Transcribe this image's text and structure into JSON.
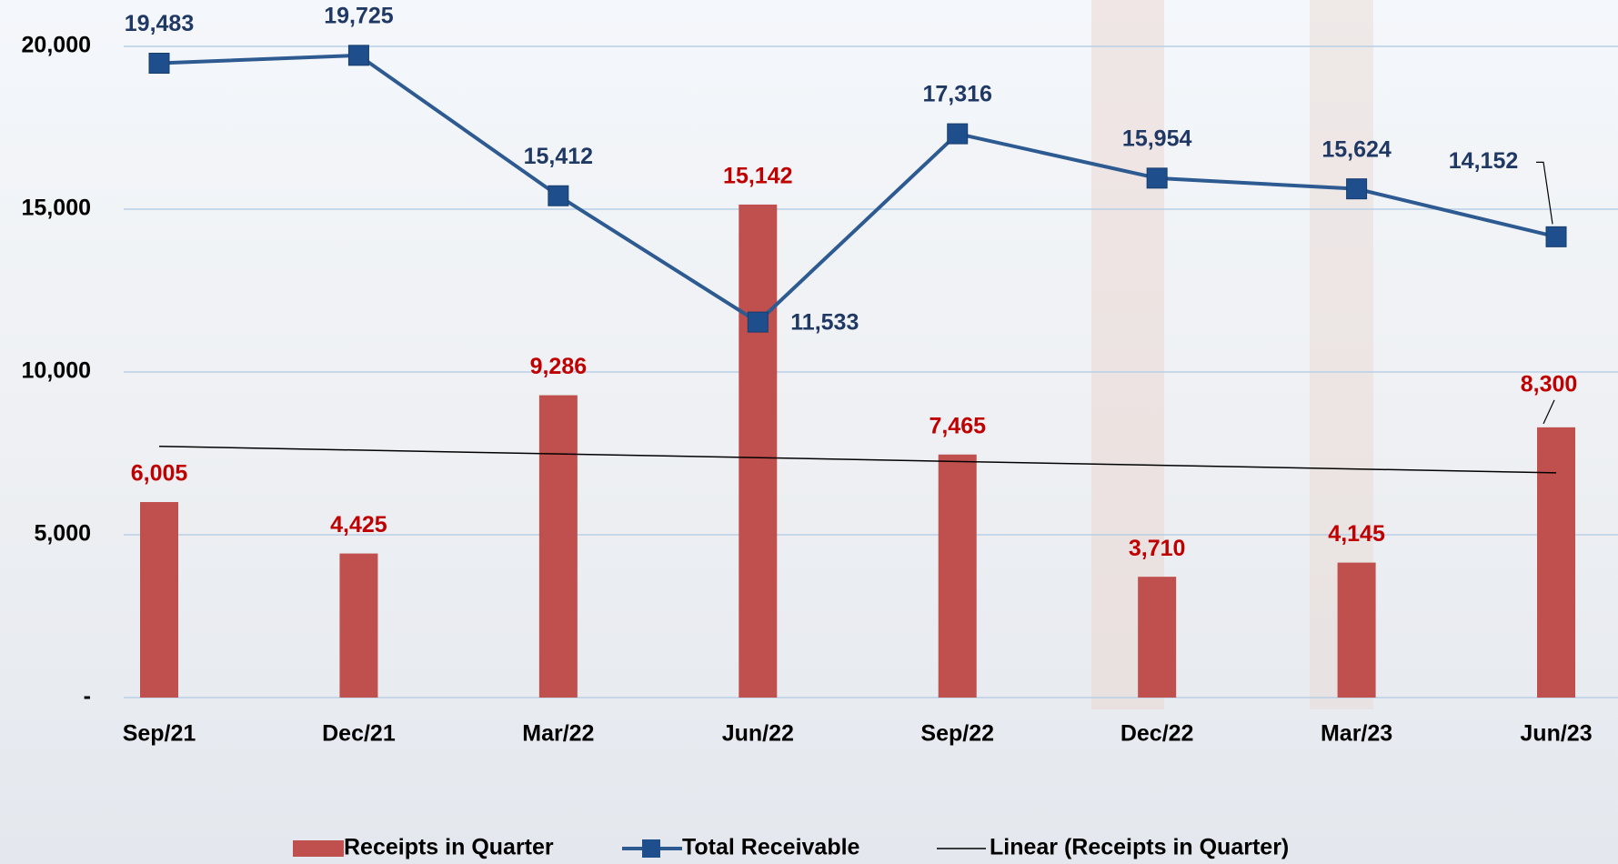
{
  "chart_data": {
    "type": "bar",
    "categories": [
      "Sep/21",
      "Dec/21",
      "Mar/22",
      "Jun/22",
      "Sep/22",
      "Dec/22",
      "Mar/23",
      "Jun/23"
    ],
    "series": [
      {
        "name": "Receipts in Quarter",
        "type": "bar",
        "color": "#c0504d",
        "label_color": "#c00000",
        "values": [
          6005,
          4425,
          9286,
          15142,
          7465,
          3710,
          4145,
          8300
        ],
        "value_labels": [
          "6,005",
          "4,425",
          "9,286",
          "15,142",
          "7,465",
          "3,710",
          "4,145",
          "8,300"
        ]
      },
      {
        "name": "Total Receivable",
        "type": "line",
        "color": "#2e5a92",
        "label_color": "#1f3864",
        "values": [
          19483,
          19725,
          15412,
          11533,
          17316,
          15954,
          15624,
          14152
        ],
        "value_labels": [
          "19,483",
          "19,725",
          "15,412",
          "11,533",
          "17,316",
          "15,954",
          "15,624",
          "14,152"
        ]
      }
    ],
    "trendline": {
      "name": "Linear (Receipts in Quarter)",
      "type": "linear",
      "color": "#000000"
    },
    "ylim": [
      0,
      20000
    ],
    "yticks": [
      {
        "value": 0,
        "label": "-"
      },
      {
        "value": 5000,
        "label": "5,000"
      },
      {
        "value": 10000,
        "label": "10,000"
      },
      {
        "value": 15000,
        "label": "15,000"
      },
      {
        "value": 20000,
        "label": "20,000"
      }
    ],
    "grid": true,
    "legend": "bottom"
  }
}
